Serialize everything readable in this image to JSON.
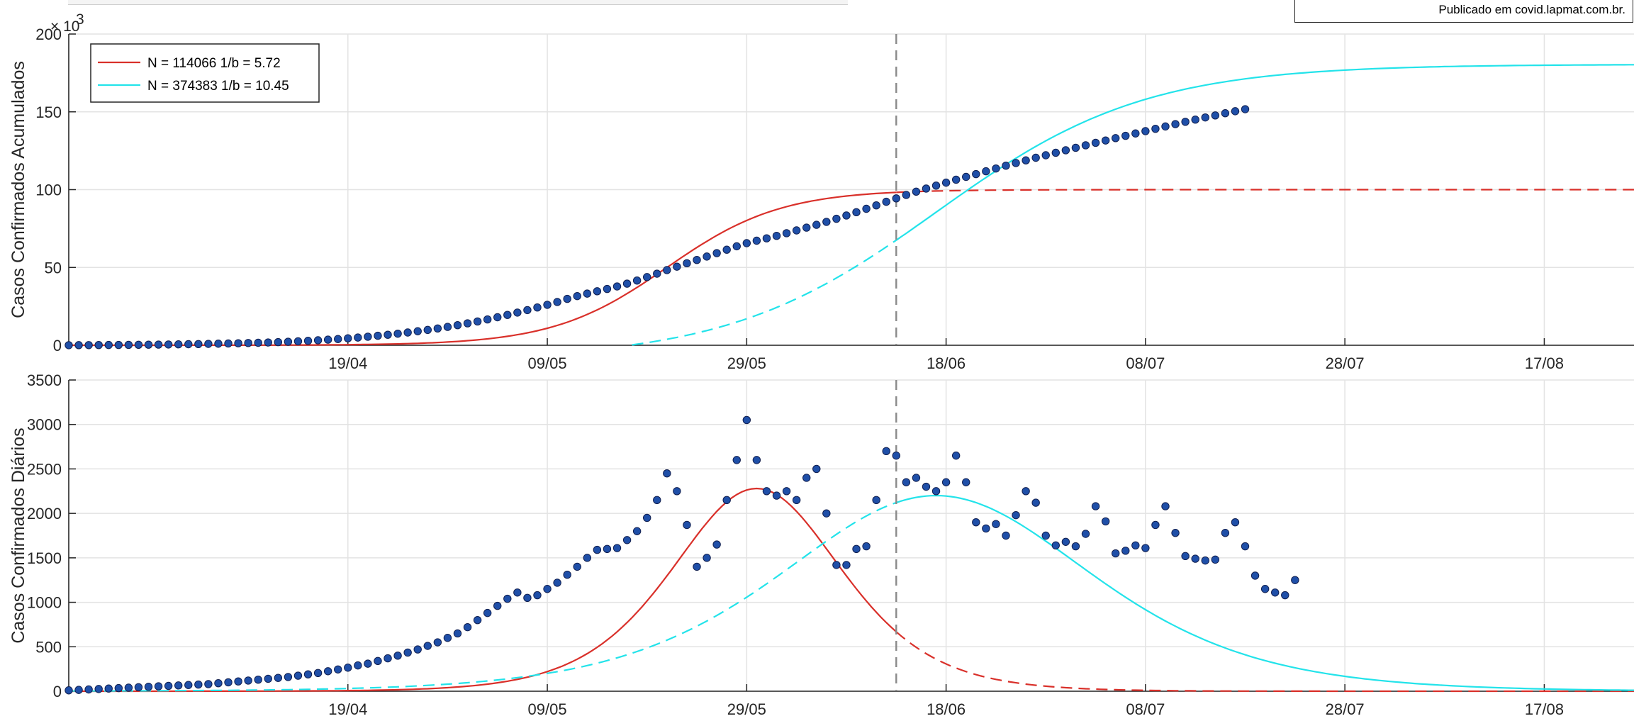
{
  "footer_note": "Publicado em covid.lapmat.com.br.",
  "x_ticks": [
    "19/04",
    "09/05",
    "29/05",
    "18/06",
    "08/07",
    "28/07",
    "17/08"
  ],
  "x_tick_days": [
    28,
    48,
    68,
    88,
    108,
    128,
    148
  ],
  "x_range_days": [
    0,
    157
  ],
  "vline_day": 83,
  "colors": {
    "fit_red": "#d9302a",
    "fit_cyan": "#23e3ea",
    "dots": "#1f4fa8",
    "dot_edge": "#111f4f",
    "vline": "#8a8a8a",
    "grid": "#e3e3e3"
  },
  "chart_data": [
    {
      "type": "scatter",
      "ylabel": "Casos Confirmados Acumulados",
      "y_multiplier": "× 10",
      "y_multiplier_exp": "3",
      "ylim": [
        0,
        200
      ],
      "yticks": [
        0,
        50,
        100,
        150,
        200
      ],
      "grid": true,
      "legend_position": "top-left",
      "legend": [
        {
          "label": "N = 114066 1/b = 5.72",
          "color": "#d9302a"
        },
        {
          "label": "N = 374383 1/b = 10.45",
          "color": "#23e3ea"
        }
      ],
      "series": [
        {
          "points_start_day": 0,
          "values": [
            0.05,
            0.07,
            0.1,
            0.13,
            0.17,
            0.2,
            0.25,
            0.3,
            0.36,
            0.42,
            0.5,
            0.58,
            0.68,
            0.78,
            0.9,
            1.02,
            1.15,
            1.29,
            1.44,
            1.6,
            1.8,
            2.02,
            2.27,
            2.55,
            2.85,
            3.2,
            3.6,
            4.0,
            4.45,
            4.95,
            5.5,
            6.1,
            6.75,
            7.45,
            8.2,
            9.0,
            9.85,
            10.8,
            11.8,
            12.9,
            14.1,
            15.3,
            16.6,
            18.0,
            19.5,
            21.0,
            22.6,
            24.3,
            26.0,
            27.8,
            29.8,
            31.6,
            33.2,
            34.7,
            36.2,
            37.8,
            39.6,
            41.6,
            43.8,
            46.0,
            48.3,
            50.5,
            52.7,
            54.8,
            57.0,
            59.2,
            61.4,
            63.6,
            65.6,
            67.2,
            68.7,
            70.3,
            72.0,
            73.8,
            75.6,
            77.4,
            79.3,
            81.3,
            83.4,
            85.5,
            87.7,
            89.9,
            92.2,
            94.4,
            96.6,
            98.7,
            100.7,
            102.6,
            104.5,
            106.4,
            108.2,
            110.0,
            111.8,
            113.6,
            115.4,
            117.1,
            118.8,
            120.5,
            122.1,
            123.7,
            125.3,
            126.9,
            128.5,
            130.1,
            131.6,
            133.1,
            134.6,
            136.1,
            137.6,
            139.1,
            140.6,
            142.1,
            143.6,
            145.0,
            146.4,
            147.7,
            149.1,
            150.4,
            151.7
          ]
        },
        {
          "name": "N = 114066 1/b = 5.72",
          "type": "line",
          "N": 114066,
          "b_inv": 5.72,
          "t0": 60.0,
          "plateau": 100,
          "solid_until_day": 83
        },
        {
          "name": "N = 374383 1/b = 10.45",
          "type": "line",
          "N": 374383,
          "b_inv": 10.45,
          "t0": 87.0,
          "plateau": 190,
          "offset": -9.5,
          "solid_from_day": 83
        }
      ]
    },
    {
      "type": "scatter",
      "ylabel": "Casos Confirmados Diários",
      "ylim": [
        0,
        3500
      ],
      "yticks": [
        0,
        500,
        1000,
        1500,
        2000,
        2500,
        3000,
        3500
      ],
      "grid": true,
      "series": [
        {
          "points_start_day": 0,
          "values": [
            10,
            15,
            20,
            25,
            30,
            35,
            40,
            45,
            50,
            55,
            60,
            65,
            70,
            75,
            80,
            90,
            100,
            110,
            120,
            130,
            140,
            150,
            160,
            175,
            190,
            205,
            225,
            245,
            265,
            290,
            310,
            340,
            370,
            400,
            435,
            470,
            510,
            550,
            600,
            650,
            720,
            800,
            880,
            960,
            1040,
            1110,
            1050,
            1080,
            1150,
            1220,
            1310,
            1400,
            1500,
            1590,
            1600,
            1610,
            1700,
            1800,
            1950,
            2150,
            2450,
            2250,
            1870,
            1400,
            1500,
            1650,
            2150,
            2600,
            3050,
            2600,
            2250,
            2200,
            2250,
            2150,
            2400,
            2500,
            2000,
            1420,
            1420,
            1600,
            1630,
            2150,
            2700,
            2650,
            2350,
            2400,
            2300,
            2250,
            2350,
            2650,
            2350,
            1900,
            1830,
            1880,
            1750,
            1980,
            2250,
            2120,
            1750,
            1640,
            1680,
            1630,
            1770,
            2080,
            1910,
            1550,
            1580,
            1640,
            1610,
            1870,
            2080,
            1780,
            1520,
            1490,
            1470,
            1480,
            1780,
            1900,
            1630,
            1300,
            1150,
            1110,
            1080,
            1250
          ]
        },
        {
          "name": "N = 114066 1/b = 5.72",
          "type": "line",
          "peak": 2280,
          "peak_day": 69,
          "width_days": 11.44,
          "solid_until_day": 83
        },
        {
          "name": "N = 374383 1/b = 10.45",
          "type": "line",
          "peak": 2200,
          "peak_day": 87,
          "width_days": 20.9,
          "floor": 200,
          "solid_from_day": 83
        }
      ]
    }
  ]
}
